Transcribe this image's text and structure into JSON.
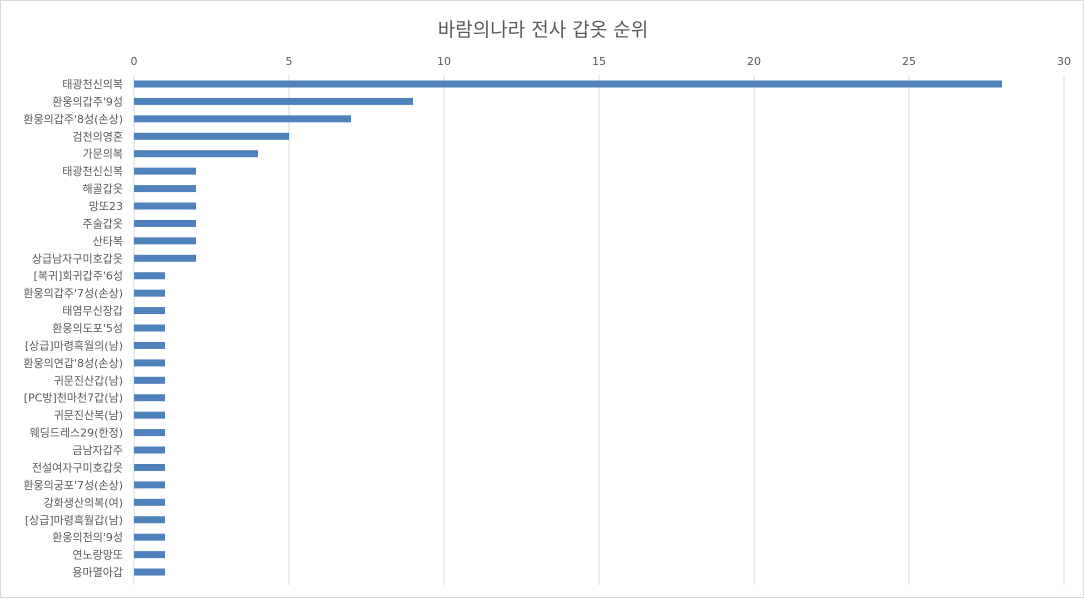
{
  "chart_data": {
    "type": "bar",
    "orientation": "horizontal",
    "title": "바람의나라 전사 갑옷 순위",
    "xlim": [
      0,
      30
    ],
    "xticks": [
      0,
      5,
      10,
      15,
      20,
      25,
      30
    ],
    "x_axis_position": "top",
    "grid": true,
    "legend": "none",
    "bar_color": "#4f81bd",
    "categories": [
      "태광천신의복",
      "환웅의갑주'9성",
      "환웅의갑주'8성(손상)",
      "검천의영혼",
      "가문의복",
      "태광천신신복",
      "해골갑옷",
      "망또23",
      "주술갑옷",
      "산타복",
      "상급남자구미호갑옷",
      "[복귀]회귀갑주'6성",
      "환웅의갑주'7성(손상)",
      "태염무신장갑",
      "환웅의도포'5성",
      "[상급]마령흑월의(남)",
      "환웅의연갑'8성(손상)",
      "귀문진산갑(남)",
      "[PC방]천마천7갑(남)",
      "귀문진산복(남)",
      "웨딩드레스29(한정)",
      "금남자갑주",
      "전설여자구미호갑옷",
      "환웅의궁포'7성(손상)",
      "강화생산의복(여)",
      "[상급]마령흑월갑(남)",
      "환웅의천의'9성",
      "연노랑망또",
      "용마멸아갑"
    ],
    "values": [
      28,
      9,
      7,
      5,
      4,
      2,
      2,
      2,
      2,
      2,
      2,
      1,
      1,
      1,
      1,
      1,
      1,
      1,
      1,
      1,
      1,
      1,
      1,
      1,
      1,
      1,
      1,
      1,
      1
    ]
  }
}
